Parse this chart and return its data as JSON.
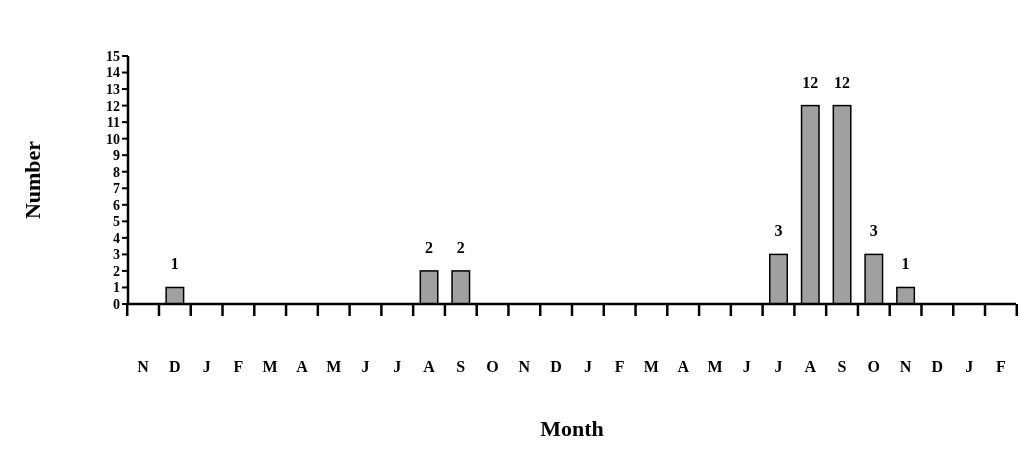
{
  "chart_data": {
    "type": "bar",
    "xlabel": "Month",
    "ylabel": "Number",
    "categories": [
      "N",
      "D",
      "J",
      "F",
      "M",
      "A",
      "M",
      "J",
      "J",
      "A",
      "S",
      "O",
      "N",
      "D",
      "J",
      "F",
      "M",
      "A",
      "M",
      "J",
      "J",
      "A",
      "S",
      "O",
      "N",
      "D",
      "J",
      "F"
    ],
    "values": [
      0,
      1,
      0,
      0,
      0,
      0,
      0,
      0,
      0,
      2,
      2,
      0,
      0,
      0,
      0,
      0,
      0,
      0,
      0,
      0,
      3,
      12,
      12,
      3,
      1,
      0,
      0,
      0
    ],
    "value_labels": [
      null,
      "1",
      null,
      null,
      null,
      null,
      null,
      null,
      null,
      "2",
      "2",
      null,
      null,
      null,
      null,
      null,
      null,
      null,
      null,
      null,
      "3",
      "12",
      "12",
      "3",
      "1",
      null,
      null,
      null
    ],
    "color": "#a0a0a0",
    "ylim": [
      0,
      15
    ],
    "yticks": [
      0,
      1,
      2,
      3,
      4,
      5,
      6,
      7,
      8,
      9,
      10,
      11,
      12,
      13,
      14,
      15
    ],
    "grid": false
  }
}
